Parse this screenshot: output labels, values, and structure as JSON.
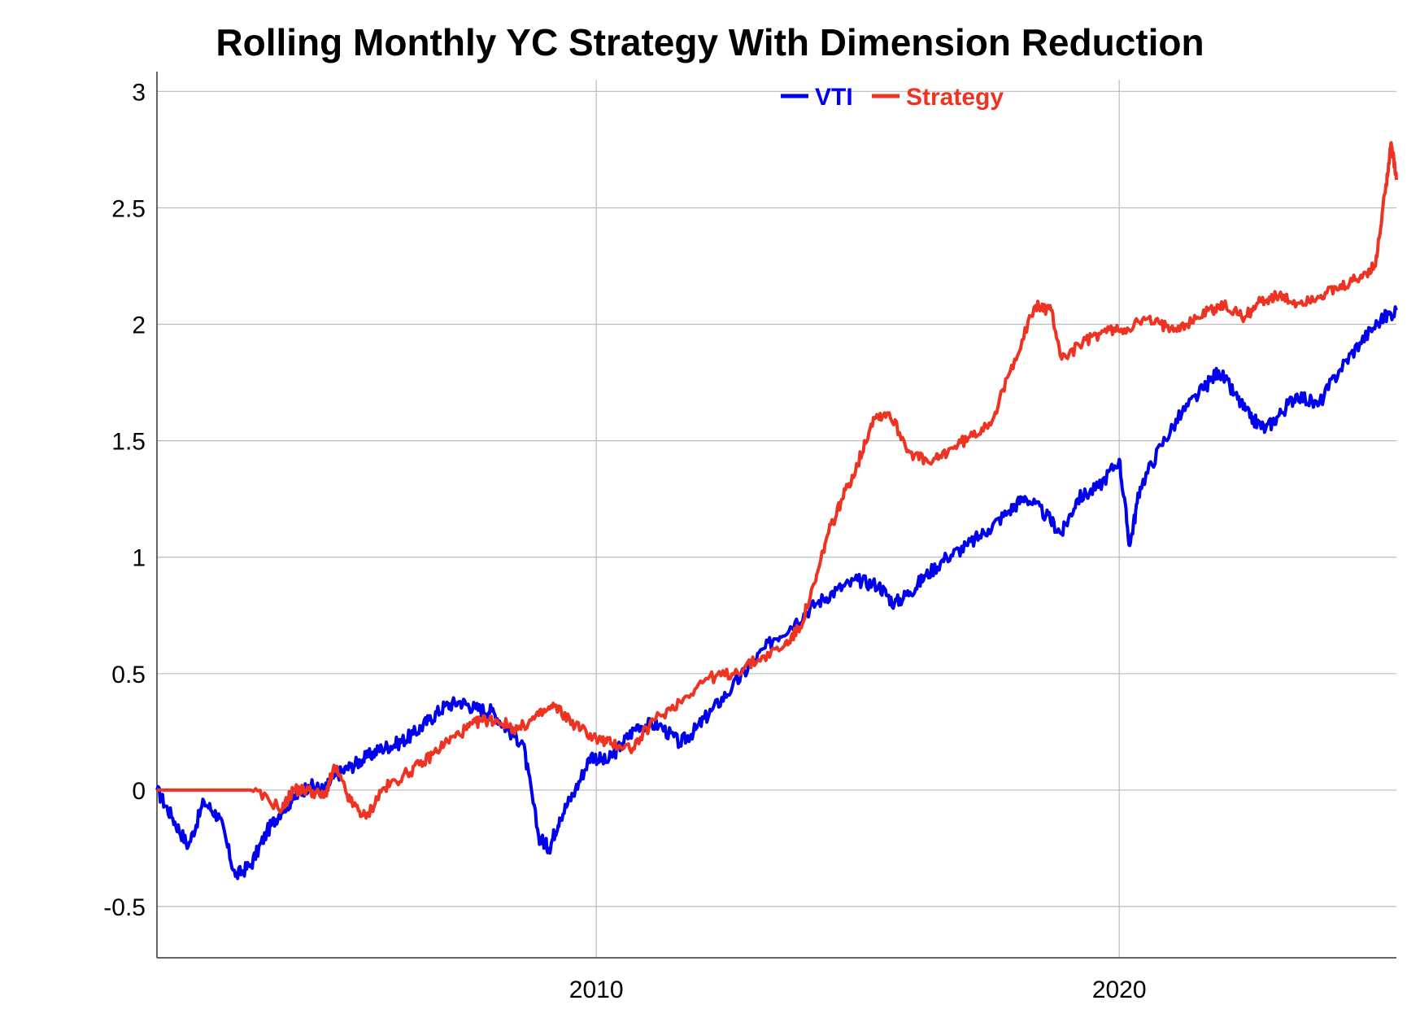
{
  "chart_data": {
    "type": "line",
    "title": "Rolling Monthly YC Strategy With Dimension Reduction",
    "xlabel": "",
    "ylabel": "",
    "x_tick_labels": [
      "2010",
      "2020"
    ],
    "y_tick_labels": [
      "-0.5",
      "0",
      "0.5",
      "1",
      "1.5",
      "2",
      "2.5",
      "3"
    ],
    "xlim": [
      2001.6,
      2025.3
    ],
    "ylim": [
      -0.72,
      3.05
    ],
    "grid": true,
    "legend_position": "top-center",
    "series": [
      {
        "name": "VTI",
        "color": "#0000ee",
        "x": [
          2001.6,
          2001.9,
          2002.2,
          2002.5,
          2002.8,
          2003.1,
          2003.4,
          2003.7,
          2004.0,
          2004.2,
          2004.5,
          2004.8,
          2005.0,
          2005.3,
          2005.6,
          2005.9,
          2006.2,
          2006.5,
          2006.8,
          2007.1,
          2007.4,
          2007.7,
          2008.0,
          2008.3,
          2008.6,
          2008.9,
          2009.1,
          2009.3,
          2009.6,
          2009.9,
          2010.2,
          2010.5,
          2010.8,
          2011.2,
          2011.6,
          2011.9,
          2012.2,
          2012.6,
          2013.0,
          2013.4,
          2013.8,
          2014.2,
          2014.6,
          2015.0,
          2015.4,
          2015.7,
          2016.0,
          2016.3,
          2016.7,
          2017.1,
          2017.5,
          2017.9,
          2018.2,
          2018.6,
          2018.9,
          2019.2,
          2019.6,
          2020.0,
          2020.2,
          2020.4,
          2020.8,
          2021.2,
          2021.6,
          2021.9,
          2022.2,
          2022.5,
          2022.8,
          2023.1,
          2023.4,
          2023.8,
          2024.2,
          2024.6,
          2025.0,
          2025.3
        ],
        "values": [
          0.0,
          -0.12,
          -0.24,
          -0.05,
          -0.12,
          -0.37,
          -0.32,
          -0.18,
          -0.08,
          -0.04,
          0.02,
          0.0,
          0.06,
          0.1,
          0.14,
          0.18,
          0.2,
          0.24,
          0.3,
          0.36,
          0.38,
          0.35,
          0.34,
          0.26,
          0.2,
          -0.2,
          -0.25,
          -0.12,
          0.0,
          0.15,
          0.12,
          0.2,
          0.28,
          0.28,
          0.2,
          0.26,
          0.34,
          0.44,
          0.55,
          0.65,
          0.72,
          0.8,
          0.86,
          0.9,
          0.88,
          0.8,
          0.85,
          0.92,
          1.0,
          1.05,
          1.12,
          1.2,
          1.26,
          1.18,
          1.1,
          1.25,
          1.3,
          1.42,
          1.05,
          1.3,
          1.48,
          1.62,
          1.72,
          1.8,
          1.7,
          1.6,
          1.55,
          1.62,
          1.7,
          1.65,
          1.8,
          1.92,
          2.02,
          2.06
        ]
      },
      {
        "name": "Strategy",
        "color": "#ee3322",
        "x": [
          2001.6,
          2002.5,
          2003.4,
          2004.0,
          2004.2,
          2004.5,
          2004.8,
          2005.0,
          2005.3,
          2005.6,
          2005.9,
          2006.3,
          2006.7,
          2007.1,
          2007.5,
          2007.8,
          2008.1,
          2008.5,
          2008.9,
          2009.2,
          2009.6,
          2010.0,
          2010.3,
          2010.7,
          2011.1,
          2011.6,
          2012.1,
          2012.6,
          2013.1,
          2013.6,
          2013.9,
          2014.2,
          2014.4,
          2014.7,
          2015.0,
          2015.3,
          2015.6,
          2016.0,
          2016.4,
          2016.8,
          2017.2,
          2017.6,
          2018.0,
          2018.4,
          2018.7,
          2018.9,
          2019.3,
          2019.7,
          2020.1,
          2020.5,
          2020.9,
          2021.3,
          2021.7,
          2022.0,
          2022.4,
          2022.7,
          2023.0,
          2023.4,
          2023.8,
          2024.2,
          2024.6,
          2024.9,
          2025.1,
          2025.2,
          2025.3
        ],
        "values": [
          0.0,
          0.0,
          0.0,
          -0.08,
          0.0,
          0.0,
          -0.03,
          0.1,
          -0.05,
          -0.12,
          0.0,
          0.06,
          0.12,
          0.2,
          0.26,
          0.3,
          0.3,
          0.26,
          0.32,
          0.36,
          0.28,
          0.22,
          0.2,
          0.18,
          0.3,
          0.38,
          0.48,
          0.5,
          0.56,
          0.62,
          0.7,
          0.9,
          1.08,
          1.25,
          1.4,
          1.6,
          1.62,
          1.45,
          1.4,
          1.47,
          1.52,
          1.6,
          1.85,
          2.08,
          2.06,
          1.85,
          1.92,
          1.97,
          1.98,
          2.02,
          1.99,
          2.0,
          2.06,
          2.08,
          2.03,
          2.1,
          2.12,
          2.09,
          2.12,
          2.15,
          2.2,
          2.25,
          2.6,
          2.78,
          2.62
        ]
      }
    ]
  }
}
